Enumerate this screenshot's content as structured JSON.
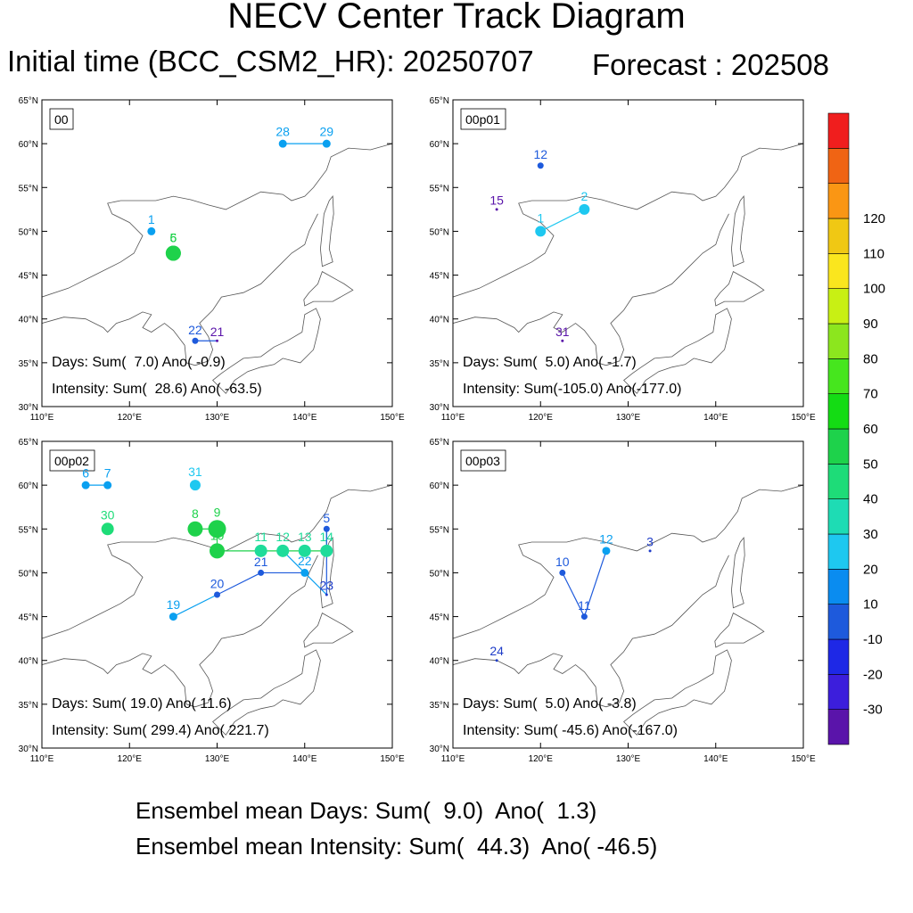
{
  "header": {
    "title": "NECV Center Track Diagram",
    "initial_time": "Initial time (BCC_CSM2_HR): 20250707",
    "forecast": "Forecast : 202508"
  },
  "axes": {
    "lon_labels": [
      "110°E",
      "120°E",
      "130°E",
      "140°E",
      "150°E"
    ],
    "lat_labels": [
      "65°N",
      "60°N",
      "55°N",
      "50°N",
      "45°N",
      "40°N",
      "35°N",
      "30°N"
    ],
    "lon_range": [
      110,
      150
    ],
    "lat_range": [
      30,
      65
    ]
  },
  "panels": [
    {
      "id": "00",
      "days_text": "Days: Sum(  7.0) Ano( -0.9)",
      "intensity_text": "Intensity: Sum(  28.6) Ano( -63.5)",
      "points": [
        {
          "label": "1",
          "lon": 122.5,
          "lat": 50.0,
          "color": "#0aa0f0",
          "size": 3
        },
        {
          "label": "5",
          "lon": 125.0,
          "lat": 47.5,
          "color": "#1ed24b",
          "size": 6
        },
        {
          "label": "6",
          "lon": 125.0,
          "lat": 47.5,
          "color": "#1ed24b",
          "size": 6
        },
        {
          "label": "22",
          "lon": 127.5,
          "lat": 37.5,
          "color": "#1e5adc",
          "size": 2
        },
        {
          "label": "21",
          "lon": 130.0,
          "lat": 37.5,
          "color": "#5a14aa",
          "size": 1
        },
        {
          "label": "28",
          "lon": 137.5,
          "lat": 60.0,
          "color": "#0aa0f0",
          "size": 3
        },
        {
          "label": "29",
          "lon": 142.5,
          "lat": 60.0,
          "color": "#0aa0f0",
          "size": 3
        }
      ],
      "tracks": [
        [
          "22",
          "21"
        ],
        [
          "28",
          "29"
        ]
      ]
    },
    {
      "id": "00p01",
      "days_text": "Days: Sum(  5.0) Ano( -1.7)",
      "intensity_text": "Intensity: Sum(-105.0) Ano(-177.0)",
      "points": [
        {
          "label": "12",
          "lon": 120.0,
          "lat": 57.5,
          "color": "#1e5adc",
          "size": 2
        },
        {
          "label": "15",
          "lon": 115.0,
          "lat": 52.5,
          "color": "#5a14aa",
          "size": 1
        },
        {
          "label": "1",
          "lon": 120.0,
          "lat": 50.0,
          "color": "#1ec8f0",
          "size": 4
        },
        {
          "label": "2",
          "lon": 125.0,
          "lat": 52.5,
          "color": "#1ec8f0",
          "size": 4
        },
        {
          "label": "31",
          "lon": 122.5,
          "lat": 37.5,
          "color": "#5a14aa",
          "size": 1
        }
      ],
      "tracks": [
        [
          "1",
          "2"
        ]
      ]
    },
    {
      "id": "00p02",
      "days_text": "Days: Sum( 19.0) Ano( 11.6)",
      "intensity_text": "Intensity: Sum( 299.4) Ano( 221.7)",
      "points": [
        {
          "label": "6",
          "lon": 115.0,
          "lat": 60.0,
          "color": "#0aa0f0",
          "size": 3
        },
        {
          "label": "7",
          "lon": 117.5,
          "lat": 60.0,
          "color": "#0aa0f0",
          "size": 3
        },
        {
          "label": "31",
          "lon": 127.5,
          "lat": 60.0,
          "color": "#1ec8f0",
          "size": 4
        },
        {
          "label": "30",
          "lon": 117.5,
          "lat": 55.0,
          "color": "#1edc78",
          "size": 5
        },
        {
          "label": "8",
          "lon": 127.5,
          "lat": 55.0,
          "color": "#1ed24b",
          "size": 6
        },
        {
          "label": "9",
          "lon": 130.0,
          "lat": 55.0,
          "color": "#1ed24b",
          "size": 7
        },
        {
          "label": "10",
          "lon": 130.0,
          "lat": 52.5,
          "color": "#1ed24b",
          "size": 6
        },
        {
          "label": "11",
          "lon": 135.0,
          "lat": 52.5,
          "color": "#1edc9a",
          "size": 5
        },
        {
          "label": "12",
          "lon": 137.5,
          "lat": 52.5,
          "color": "#1edc9a",
          "size": 5
        },
        {
          "label": "13",
          "lon": 140.0,
          "lat": 52.5,
          "color": "#1edc9a",
          "size": 5
        },
        {
          "label": "14",
          "lon": 142.5,
          "lat": 52.5,
          "color": "#1edc9a",
          "size": 5
        },
        {
          "label": "5",
          "lon": 142.5,
          "lat": 55.0,
          "color": "#1e5adc",
          "size": 2
        },
        {
          "label": "21",
          "lon": 135.0,
          "lat": 50.0,
          "color": "#1e5adc",
          "size": 2
        },
        {
          "label": "22",
          "lon": 140.0,
          "lat": 50.0,
          "color": "#0aa0f0",
          "size": 3
        },
        {
          "label": "23",
          "lon": 142.5,
          "lat": 47.5,
          "color": "#1e3cc8",
          "size": 1
        },
        {
          "label": "20",
          "lon": 130.0,
          "lat": 47.5,
          "color": "#1e5adc",
          "size": 2
        },
        {
          "label": "19",
          "lon": 125.0,
          "lat": 45.0,
          "color": "#0aa0f0",
          "size": 3
        }
      ],
      "tracks": [
        [
          "6",
          "7"
        ],
        [
          "8",
          "9"
        ],
        [
          "9",
          "10"
        ],
        [
          "10",
          "14"
        ],
        [
          "14",
          "5"
        ],
        [
          "5",
          "23"
        ],
        [
          "19",
          "20"
        ],
        [
          "20",
          "21"
        ],
        [
          "21",
          "22"
        ],
        [
          "22",
          "12"
        ],
        [
          "22",
          "23"
        ]
      ]
    },
    {
      "id": "00p03",
      "days_text": "Days: Sum(  5.0) Ano( -3.8)",
      "intensity_text": "Intensity: Sum( -45.6) Ano(-167.0)",
      "points": [
        {
          "label": "10",
          "lon": 122.5,
          "lat": 50.0,
          "color": "#1e5adc",
          "size": 2
        },
        {
          "label": "11",
          "lon": 125.0,
          "lat": 45.0,
          "color": "#1e5adc",
          "size": 2
        },
        {
          "label": "12",
          "lon": 127.5,
          "lat": 52.5,
          "color": "#0aa0f0",
          "size": 3
        },
        {
          "label": "3",
          "lon": 132.5,
          "lat": 52.5,
          "color": "#1e3cc8",
          "size": 1
        },
        {
          "label": "24",
          "lon": 115.0,
          "lat": 40.0,
          "color": "#1e3cc8",
          "size": 1
        }
      ],
      "tracks": [
        [
          "10",
          "11"
        ],
        [
          "11",
          "12"
        ]
      ]
    }
  ],
  "colorbar": {
    "colors": [
      "#5a14aa",
      "#3c1edc",
      "#1e28e6",
      "#1e5adc",
      "#0a8cf0",
      "#1ec8f0",
      "#1edcb4",
      "#1edc78",
      "#1ed24b",
      "#14dc14",
      "#46e61e",
      "#8ce61e",
      "#c8f014",
      "#fae61e",
      "#f0c814",
      "#fa9614",
      "#f06414",
      "#f01e1e"
    ],
    "labels": [
      "-30",
      "-20",
      "-10",
      "10",
      "20",
      "30",
      "40",
      "50",
      "60",
      "70",
      "80",
      "90",
      "100",
      "110",
      "120"
    ]
  },
  "footer": {
    "mean_days": "Ensembel mean Days: Sum(  9.0)  Ano(  1.3)",
    "mean_intensity": "Ensembel mean Intensity: Sum(  44.3)  Ano( -46.5)"
  }
}
